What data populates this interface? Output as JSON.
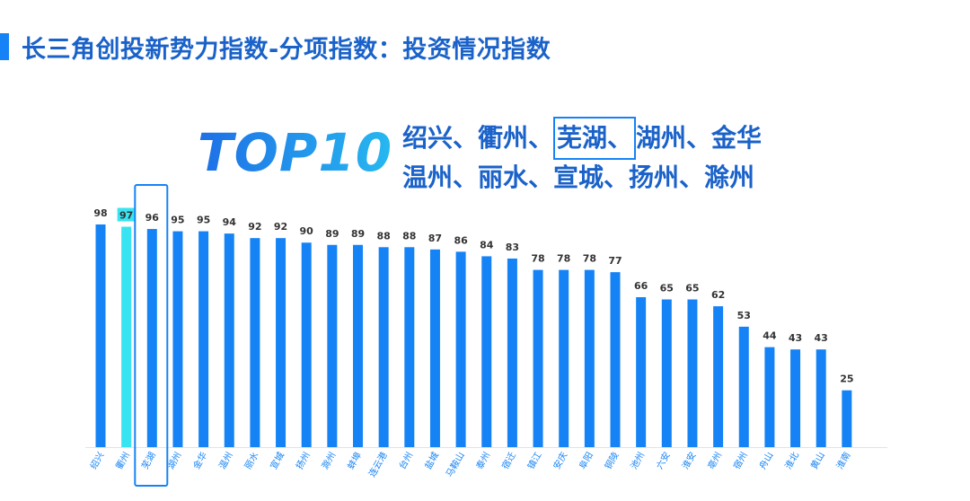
{
  "title": "长三角创投新势力指数-分项指数：投资情况指数",
  "top10": {
    "badge": "TOP10",
    "line1_a": "绍兴、衢州、",
    "line1_highlight": "芜湖、",
    "line1_b": "湖州、金华",
    "line2": "温州、丽水、宣城、扬州、滁州"
  },
  "colors": {
    "bar": "#1583f5",
    "highlight_bar": "#38e3f2",
    "highlight_box": "#1583f5",
    "title": "#1a62c9"
  },
  "chart_data": {
    "type": "bar",
    "categories": [
      "绍兴",
      "衢州",
      "芜湖",
      "湖州",
      "金华",
      "温州",
      "丽水",
      "宣城",
      "扬州",
      "滁州",
      "蚌埠",
      "连云港",
      "台州",
      "盐城",
      "马鞍山",
      "泰州",
      "宿迁",
      "镇江",
      "安庆",
      "阜阳",
      "铜陵",
      "池州",
      "六安",
      "淮安",
      "亳州",
      "宿州",
      "舟山",
      "淮北",
      "黄山",
      "淮南"
    ],
    "values": [
      98,
      97,
      96,
      95,
      95,
      94,
      92,
      92,
      90,
      89,
      89,
      88,
      88,
      87,
      86,
      84,
      83,
      78,
      78,
      78,
      77,
      66,
      65,
      65,
      62,
      53,
      44,
      43,
      43,
      25
    ],
    "highlight_fill": "衢州",
    "highlight_box": "芜湖",
    "ylim": [
      0,
      98
    ]
  }
}
